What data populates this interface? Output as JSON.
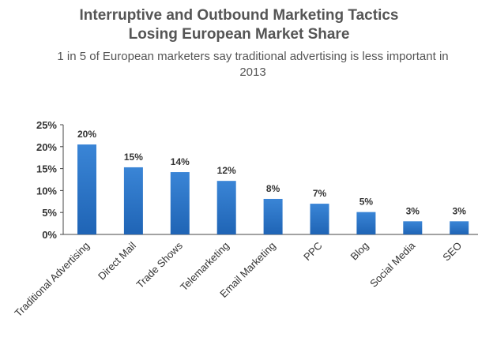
{
  "title_line1": "Interruptive and Outbound Marketing Tactics",
  "title_line2": "Losing European Market Share",
  "subtitle": "1 in 5 of European marketers say traditional advertising is less important in 2013",
  "chart_data": {
    "type": "bar",
    "title": "Interruptive and Outbound Marketing Tactics Losing European Market Share",
    "subtitle": "1 in 5 of European marketers say traditional advertising is less important in 2013",
    "categories": [
      "Traditional Advertising",
      "Direct Mail",
      "Trade Shows",
      "Telemarketing",
      "Email Marketing",
      "PPC",
      "Blog",
      "Social Media",
      "SEO"
    ],
    "values": [
      20.5,
      15.3,
      14.2,
      12.2,
      8.1,
      7.0,
      5.1,
      3.0,
      3.0
    ],
    "data_labels": [
      "20%",
      "15%",
      "14%",
      "12%",
      "8%",
      "7%",
      "5%",
      "3%",
      "3%"
    ],
    "y_ticks": [
      "0%",
      "5%",
      "10%",
      "15%",
      "20%",
      "25%"
    ],
    "ylim": [
      0,
      25
    ],
    "xlabel": "",
    "ylabel": "",
    "grid": false,
    "legend": "none",
    "bar_color": "#3a85d6",
    "bar_color_dark": "#1f64b5"
  }
}
